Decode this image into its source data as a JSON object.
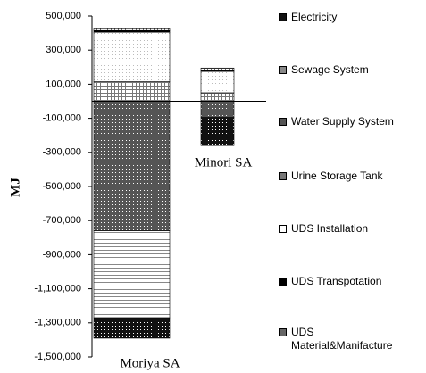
{
  "chart_data": {
    "type": "bar",
    "stacked": true,
    "y_label": "MJ",
    "categories": [
      "Moriya SA",
      "Minori SA"
    ],
    "series": [
      {
        "name": "Electricity",
        "color": "#111111",
        "values": [
          -120000,
          -165000
        ]
      },
      {
        "name": "Sewage System",
        "color": "#888888",
        "values": [
          -510000,
          0
        ]
      },
      {
        "name": "Water Supply System",
        "color": "#555555",
        "values": [
          -760000,
          -95000
        ]
      },
      {
        "name": "Urine Storage Tank",
        "color": "#777777",
        "values": [
          115000,
          50000
        ]
      },
      {
        "name": "UDS Installation",
        "color": "#bbbbbb",
        "values": [
          290000,
          125000
        ]
      },
      {
        "name": "UDS Transpotation",
        "color": "#000000",
        "values": [
          10000,
          5000
        ]
      },
      {
        "name": "UDS Material&Manifacture",
        "color": "#666666",
        "values": [
          15000,
          15000
        ]
      }
    ],
    "ylim": [
      -1500000,
      500000
    ],
    "yticks": [
      {
        "value": 500000,
        "label": "500,000"
      },
      {
        "value": 300000,
        "label": "300,000"
      },
      {
        "value": 100000,
        "label": "100,000"
      },
      {
        "value": -100000,
        "label": "-100,000"
      },
      {
        "value": -300000,
        "label": "-300,000"
      },
      {
        "value": -500000,
        "label": "-500,000"
      },
      {
        "value": -700000,
        "label": "-700,000"
      },
      {
        "value": -900000,
        "label": "-900,000"
      },
      {
        "value": -1100000,
        "label": "-1,100,000"
      },
      {
        "value": -1300000,
        "label": "-1,300,000"
      },
      {
        "value": -1500000,
        "label": "-1,500,000"
      }
    ]
  }
}
